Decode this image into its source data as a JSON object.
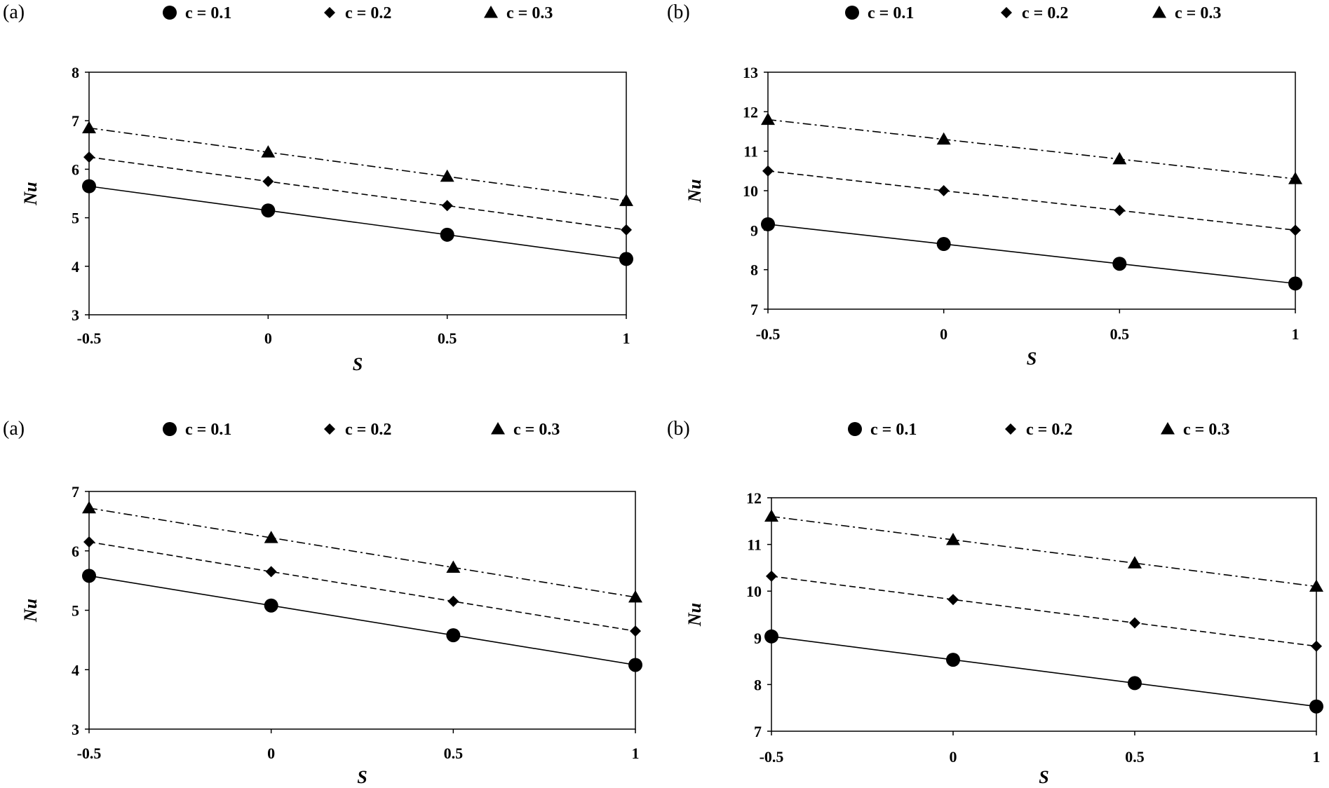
{
  "figure": {
    "legend_labels": [
      "c = 0.1",
      "c = 0.2",
      "c = 0.3"
    ]
  },
  "chart_data": [
    {
      "type": "line",
      "panel_label": "(a)",
      "title": "",
      "xlabel": "S",
      "ylabel": "Nu",
      "xlim": [
        -0.5,
        1
      ],
      "ylim": [
        3,
        8
      ],
      "xticks": [
        -0.5,
        0,
        0.5,
        1
      ],
      "xtick_labels": [
        "-0.5",
        "0",
        "0.5",
        "1"
      ],
      "yticks": [
        3,
        4,
        5,
        6,
        7,
        8
      ],
      "ytick_labels": [
        "3",
        "4",
        "5",
        "6",
        "7",
        "8"
      ],
      "grid": false,
      "legend": "top",
      "x": [
        -0.5,
        0,
        0.5,
        1
      ],
      "series": [
        {
          "name": "c = 0.1",
          "marker": "circle",
          "line": "solid",
          "values": [
            5.65,
            5.15,
            4.65,
            4.15
          ]
        },
        {
          "name": "c = 0.2",
          "marker": "diamond",
          "line": "dashed",
          "values": [
            6.25,
            5.75,
            5.25,
            4.75
          ]
        },
        {
          "name": "c = 0.3",
          "marker": "triangle",
          "line": "dashdot",
          "values": [
            6.85,
            6.35,
            5.85,
            5.35
          ]
        }
      ]
    },
    {
      "type": "line",
      "panel_label": "(b)",
      "title": "",
      "xlabel": "S",
      "ylabel": "Nu",
      "xlim": [
        -0.5,
        1
      ],
      "ylim": [
        7,
        13
      ],
      "xticks": [
        -0.5,
        0,
        0.5,
        1
      ],
      "xtick_labels": [
        "-0.5",
        "0",
        "0.5",
        "1"
      ],
      "yticks": [
        7,
        8,
        9,
        10,
        11,
        12,
        13
      ],
      "ytick_labels": [
        "7",
        "8",
        "9",
        "10",
        "11",
        "12",
        "13"
      ],
      "grid": false,
      "legend": "top",
      "x": [
        -0.5,
        0,
        0.5,
        1
      ],
      "series": [
        {
          "name": "c = 0.1",
          "marker": "circle",
          "line": "solid",
          "values": [
            9.15,
            8.65,
            8.15,
            7.65
          ]
        },
        {
          "name": "c = 0.2",
          "marker": "diamond",
          "line": "dashed",
          "values": [
            10.5,
            10.0,
            9.5,
            9.0
          ]
        },
        {
          "name": "c = 0.3",
          "marker": "triangle",
          "line": "dashdot",
          "values": [
            11.8,
            11.3,
            10.8,
            10.3
          ]
        }
      ]
    },
    {
      "type": "line",
      "panel_label": "(a)",
      "title": "",
      "xlabel": "S",
      "ylabel": "Nu",
      "xlim": [
        -0.5,
        1
      ],
      "ylim": [
        3,
        7
      ],
      "xticks": [
        -0.5,
        0,
        0.5,
        1
      ],
      "xtick_labels": [
        "-0.5",
        "0",
        "0.5",
        "1"
      ],
      "yticks": [
        3,
        4,
        5,
        6,
        7
      ],
      "ytick_labels": [
        "3",
        "4",
        "5",
        "6",
        "7"
      ],
      "grid": false,
      "legend": "top",
      "x": [
        -0.5,
        0,
        0.5,
        1
      ],
      "series": [
        {
          "name": "c = 0.1",
          "marker": "circle",
          "line": "solid",
          "values": [
            5.58,
            5.08,
            4.58,
            4.08
          ]
        },
        {
          "name": "c = 0.2",
          "marker": "diamond",
          "line": "dashed",
          "values": [
            6.15,
            5.65,
            5.15,
            4.65
          ]
        },
        {
          "name": "c = 0.3",
          "marker": "triangle",
          "line": "dashdot",
          "values": [
            6.72,
            6.22,
            5.72,
            5.22
          ]
        }
      ]
    },
    {
      "type": "line",
      "panel_label": "(b)",
      "title": "",
      "xlabel": "S",
      "ylabel": "Nu",
      "xlim": [
        -0.5,
        1
      ],
      "ylim": [
        7,
        12
      ],
      "xticks": [
        -0.5,
        0,
        0.5,
        1
      ],
      "xtick_labels": [
        "-0.5",
        "0",
        "0.5",
        "1"
      ],
      "yticks": [
        7,
        8,
        9,
        10,
        11,
        12
      ],
      "ytick_labels": [
        "7",
        "8",
        "9",
        "10",
        "11",
        "12"
      ],
      "grid": false,
      "legend": "top",
      "x": [
        -0.5,
        0,
        0.5,
        1
      ],
      "series": [
        {
          "name": "c = 0.1",
          "marker": "circle",
          "line": "solid",
          "values": [
            9.03,
            8.53,
            8.03,
            7.53
          ]
        },
        {
          "name": "c = 0.2",
          "marker": "diamond",
          "line": "dashed",
          "values": [
            10.32,
            9.82,
            9.32,
            8.82
          ]
        },
        {
          "name": "c = 0.3",
          "marker": "triangle",
          "line": "dashdot",
          "values": [
            11.6,
            11.1,
            10.6,
            10.1
          ]
        }
      ]
    }
  ]
}
